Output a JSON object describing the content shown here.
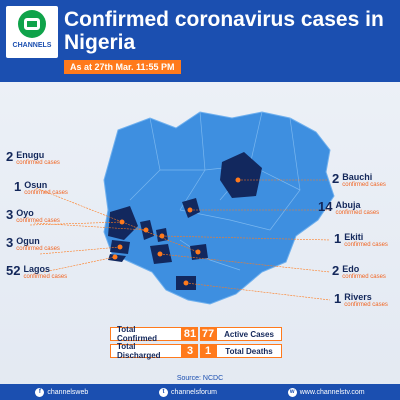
{
  "brand": {
    "logo_text": "CHANNELS"
  },
  "title": "Confirmed coronavirus cases in Nigeria",
  "date": "As at  27th Mar. 11:55 PM",
  "case_suffix": "confirmed cases",
  "states_left": [
    {
      "count": "2",
      "name": "Enugu"
    },
    {
      "count": "1",
      "name": "Osun"
    },
    {
      "count": "3",
      "name": "Oyo"
    },
    {
      "count": "3",
      "name": "Ogun"
    },
    {
      "count": "52",
      "name": "Lagos"
    }
  ],
  "states_right": [
    {
      "count": "2",
      "name": "Bauchi"
    },
    {
      "count": "14",
      "name": "Abuja"
    },
    {
      "count": "1",
      "name": "Ekiti"
    },
    {
      "count": "2",
      "name": "Edo"
    },
    {
      "count": "1",
      "name": "Rivers"
    }
  ],
  "stats": {
    "total_confirmed_label": "Total Confirmed",
    "total_confirmed": "81",
    "active_label": "Active Cases",
    "active": "77",
    "discharged_label": "Total Discharged",
    "discharged": "3",
    "deaths_label": "Total Deaths",
    "deaths": "1"
  },
  "source": "Source: NCDC",
  "footer": {
    "social1": "channelsweb",
    "social2": "channelsforum",
    "website": "www.channelstv.com"
  },
  "colors": {
    "header": "#1b4fb0",
    "map_fill": "#3e8fe0",
    "affected": "#12285e",
    "accent": "#ff7a1c"
  }
}
